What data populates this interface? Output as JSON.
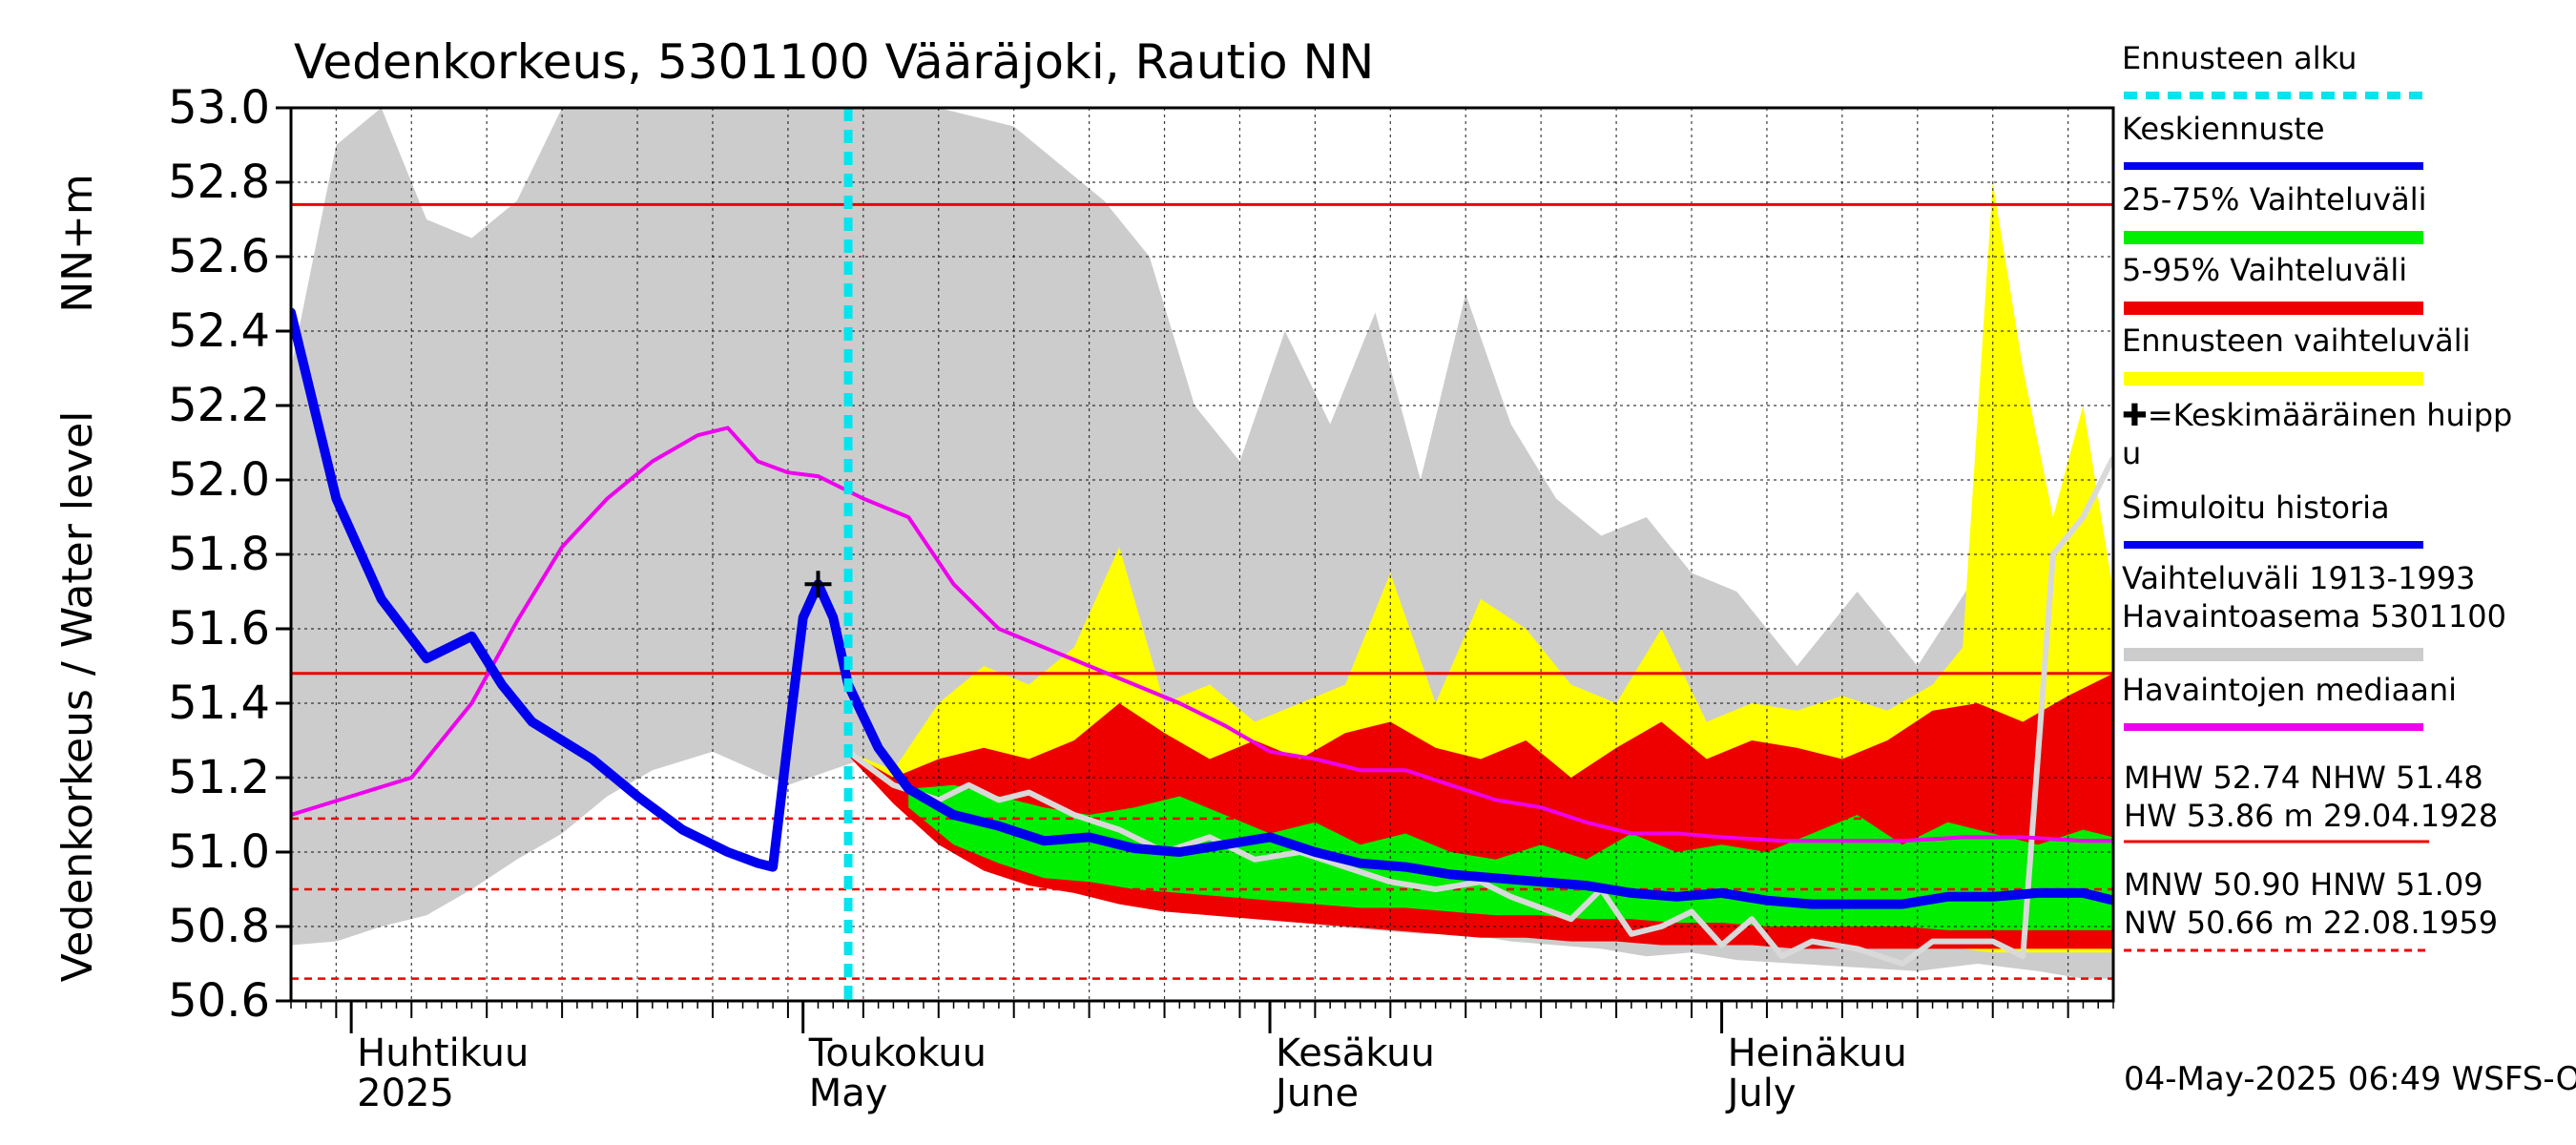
{
  "chart_data": {
    "type": "area",
    "title": "Vedenkorkeus, 5301100 Vääräjoki, Rautio NN",
    "ylabel": "Vedenkorkeus / Water level",
    "yunit": "NN+m",
    "ylim": [
      50.6,
      53.0
    ],
    "yticks": [
      "50.6",
      "50.8",
      "51.0",
      "51.2",
      "51.4",
      "51.6",
      "51.8",
      "52.0",
      "52.2",
      "52.4",
      "52.6",
      "52.8",
      "53.0"
    ],
    "xlim": [
      "2025-03-28",
      "2025-07-27"
    ],
    "month_labels": [
      {
        "date": "2025-04-01",
        "fi": "Huhtikuu",
        "en": "2025"
      },
      {
        "date": "2025-05-01",
        "fi": "Toukokuu",
        "en": "May"
      },
      {
        "date": "2025-06-01",
        "fi": "Kesäkuu",
        "en": "June"
      },
      {
        "date": "2025-07-01",
        "fi": "Heinäkuu",
        "en": "July"
      }
    ],
    "forecast_start": "2025-05-04",
    "mean_peak": {
      "date": "2025-05-02",
      "value": 51.72
    },
    "reference_lines": [
      {
        "name": "MHW",
        "value": 52.74,
        "style": "solid"
      },
      {
        "name": "NHW",
        "value": 51.48,
        "style": "solid"
      },
      {
        "name": "HNW",
        "value": 51.09,
        "style": "dashed"
      },
      {
        "name": "MNW",
        "value": 50.9,
        "style": "dashed"
      },
      {
        "name": "NW",
        "value": 50.66,
        "style": "dashed"
      }
    ],
    "legend_placement": "right",
    "legend": [
      {
        "label": "Ennusteen alku",
        "color": "#00e5ee",
        "style": "dotted"
      },
      {
        "label": "Keskiennuste",
        "color": "#0000ee",
        "style": "solid"
      },
      {
        "label": "25-75% Vaihteluväli",
        "color": "#00ee00",
        "style": "band"
      },
      {
        "label": "5-95% Vaihteluväli",
        "color": "#ee0000",
        "style": "band"
      },
      {
        "label": "Ennusteen vaihteluväli",
        "color": "#ffff00",
        "style": "band"
      },
      {
        "label": "✚=Keskimääräinen huipp",
        "label2": "u",
        "color": "#000000",
        "style": "none"
      },
      {
        "label": "Simuloitu historia",
        "color": "#0000ee",
        "style": "solid"
      },
      {
        "label": "Vaihteluväli 1913-1993",
        "label2": " Havaintoasema 5301100",
        "color": "#cccccc",
        "style": "band"
      },
      {
        "label": "Havaintojen mediaani",
        "color": "#ee00ee",
        "style": "solid"
      }
    ],
    "stats_text": [
      "MHW  52.74 NHW  51.48",
      "HW  53.86 m 29.04.1928",
      "MNW  50.90 HNW  51.09",
      "NW  50.66 m 22.08.1959"
    ],
    "footer": "04-May-2025 06:49 WSFS-O",
    "colors": {
      "history_band": "#cccccc",
      "forecast_range": "#ffff00",
      "band_5_95": "#ee0000",
      "band_25_75": "#00ee00",
      "mean_forecast": "#0000ee",
      "median": "#ee00ee",
      "light_forecast": "#d9d9d9",
      "ref_line": "#ee0000",
      "forecast_start": "#00e5ee"
    },
    "series": {
      "history_band": {
        "x": [
          "2025-03-28",
          "2025-03-31",
          "2025-04-03",
          "2025-04-06",
          "2025-04-09",
          "2025-04-12",
          "2025-04-15",
          "2025-04-18",
          "2025-04-21",
          "2025-04-25",
          "2025-04-30",
          "2025-05-05",
          "2025-05-10",
          "2025-05-15",
          "2025-05-18",
          "2025-05-21",
          "2025-05-24",
          "2025-05-27",
          "2025-05-30",
          "2025-06-02",
          "2025-06-05",
          "2025-06-08",
          "2025-06-11",
          "2025-06-14",
          "2025-06-17",
          "2025-06-20",
          "2025-06-23",
          "2025-06-26",
          "2025-06-29",
          "2025-07-02",
          "2025-07-06",
          "2025-07-10",
          "2025-07-14",
          "2025-07-18",
          "2025-07-22",
          "2025-07-25",
          "2025-07-27"
        ],
        "lower": [
          50.75,
          50.76,
          50.8,
          50.83,
          50.9,
          50.98,
          51.05,
          51.15,
          51.22,
          51.27,
          51.18,
          51.25,
          51.05,
          50.97,
          50.92,
          50.9,
          50.88,
          50.86,
          50.85,
          50.82,
          50.8,
          50.79,
          50.78,
          50.78,
          50.76,
          50.75,
          50.74,
          50.72,
          50.73,
          50.71,
          50.7,
          50.69,
          50.68,
          50.7,
          50.68,
          50.66,
          50.66
        ],
        "upper": [
          52.3,
          52.9,
          53.0,
          52.7,
          52.65,
          52.75,
          53.0,
          53.0,
          53.0,
          53.0,
          53.0,
          53.0,
          53.0,
          52.95,
          52.85,
          52.75,
          52.6,
          52.2,
          52.05,
          52.4,
          52.15,
          52.45,
          52.0,
          52.5,
          52.15,
          51.95,
          51.85,
          51.9,
          51.75,
          51.7,
          51.5,
          51.7,
          51.5,
          51.75,
          51.65,
          51.55,
          51.5
        ]
      },
      "forecast_range": {
        "x": [
          "2025-05-04",
          "2025-05-07",
          "2025-05-10",
          "2025-05-13",
          "2025-05-16",
          "2025-05-19",
          "2025-05-22",
          "2025-05-25",
          "2025-05-28",
          "2025-05-31",
          "2025-06-03",
          "2025-06-06",
          "2025-06-09",
          "2025-06-12",
          "2025-06-15",
          "2025-06-18",
          "2025-06-21",
          "2025-06-24",
          "2025-06-27",
          "2025-06-30",
          "2025-07-03",
          "2025-07-06",
          "2025-07-09",
          "2025-07-12",
          "2025-07-15",
          "2025-07-17",
          "2025-07-19",
          "2025-07-21",
          "2025-07-23",
          "2025-07-25",
          "2025-07-27"
        ],
        "lower": [
          51.27,
          51.15,
          51.05,
          50.98,
          50.93,
          50.9,
          50.88,
          50.86,
          50.85,
          50.84,
          50.83,
          50.82,
          50.81,
          50.8,
          50.79,
          50.78,
          50.77,
          50.77,
          50.76,
          50.76,
          50.75,
          50.75,
          50.75,
          50.74,
          50.74,
          50.74,
          50.73,
          50.73,
          50.73,
          50.73,
          50.73
        ],
        "upper": [
          51.27,
          51.22,
          51.4,
          51.5,
          51.45,
          51.55,
          51.82,
          51.4,
          51.45,
          51.35,
          51.4,
          51.45,
          51.75,
          51.4,
          51.68,
          51.6,
          51.45,
          51.4,
          51.6,
          51.35,
          51.4,
          51.38,
          51.42,
          51.38,
          51.45,
          51.55,
          52.8,
          52.3,
          51.9,
          52.2,
          51.7
        ]
      },
      "band_5_95": {
        "x": [
          "2025-05-04",
          "2025-05-07",
          "2025-05-10",
          "2025-05-13",
          "2025-05-16",
          "2025-05-19",
          "2025-05-22",
          "2025-05-25",
          "2025-05-28",
          "2025-05-31",
          "2025-06-03",
          "2025-06-06",
          "2025-06-09",
          "2025-06-12",
          "2025-06-15",
          "2025-06-18",
          "2025-06-21",
          "2025-06-24",
          "2025-06-27",
          "2025-06-30",
          "2025-07-03",
          "2025-07-06",
          "2025-07-09",
          "2025-07-12",
          "2025-07-15",
          "2025-07-18",
          "2025-07-21",
          "2025-07-24",
          "2025-07-27"
        ],
        "lower": [
          51.26,
          51.13,
          51.02,
          50.95,
          50.91,
          50.89,
          50.86,
          50.84,
          50.83,
          50.82,
          50.81,
          50.8,
          50.79,
          50.78,
          50.77,
          50.77,
          50.76,
          50.76,
          50.75,
          50.75,
          50.75,
          50.74,
          50.74,
          50.74,
          50.74,
          50.74,
          50.74,
          50.74,
          50.74
        ],
        "upper": [
          51.27,
          51.2,
          51.25,
          51.28,
          51.25,
          51.3,
          51.4,
          51.32,
          51.25,
          51.3,
          51.25,
          51.32,
          51.35,
          51.28,
          51.25,
          51.3,
          51.2,
          51.28,
          51.35,
          51.25,
          51.3,
          51.28,
          51.25,
          51.3,
          51.38,
          51.4,
          51.35,
          51.42,
          51.48
        ]
      },
      "band_25_75": {
        "x": [
          "2025-05-08",
          "2025-05-11",
          "2025-05-14",
          "2025-05-17",
          "2025-05-20",
          "2025-05-23",
          "2025-05-26",
          "2025-05-29",
          "2025-06-01",
          "2025-06-04",
          "2025-06-07",
          "2025-06-10",
          "2025-06-13",
          "2025-06-16",
          "2025-06-19",
          "2025-06-22",
          "2025-06-25",
          "2025-06-28",
          "2025-07-01",
          "2025-07-04",
          "2025-07-07",
          "2025-07-10",
          "2025-07-13",
          "2025-07-16",
          "2025-07-19",
          "2025-07-22",
          "2025-07-25",
          "2025-07-27"
        ],
        "lower": [
          51.12,
          51.02,
          50.97,
          50.93,
          50.92,
          50.9,
          50.89,
          50.88,
          50.87,
          50.86,
          50.85,
          50.85,
          50.84,
          50.83,
          50.83,
          50.82,
          50.82,
          50.81,
          50.81,
          50.8,
          50.8,
          50.8,
          50.8,
          50.79,
          50.79,
          50.79,
          50.79,
          50.79
        ],
        "upper": [
          51.17,
          51.18,
          51.15,
          51.12,
          51.1,
          51.12,
          51.15,
          51.1,
          51.05,
          51.08,
          51.02,
          51.05,
          51.0,
          50.98,
          51.02,
          50.98,
          51.05,
          51.0,
          51.02,
          51.0,
          51.05,
          51.1,
          51.02,
          51.08,
          51.05,
          51.02,
          51.06,
          51.04
        ]
      },
      "light_forecast": {
        "x": [
          "2025-05-04",
          "2025-05-07",
          "2025-05-10",
          "2025-05-12",
          "2025-05-14",
          "2025-05-16",
          "2025-05-19",
          "2025-05-22",
          "2025-05-25",
          "2025-05-28",
          "2025-05-31",
          "2025-06-03",
          "2025-06-06",
          "2025-06-09",
          "2025-06-12",
          "2025-06-15",
          "2025-06-17",
          "2025-06-19",
          "2025-06-21",
          "2025-06-23",
          "2025-06-25",
          "2025-06-27",
          "2025-06-29",
          "2025-07-01",
          "2025-07-03",
          "2025-07-05",
          "2025-07-07",
          "2025-07-10",
          "2025-07-13",
          "2025-07-15",
          "2025-07-17",
          "2025-07-19",
          "2025-07-21",
          "2025-07-23",
          "2025-07-25",
          "2025-07-27"
        ],
        "values": [
          51.27,
          51.18,
          51.14,
          51.18,
          51.14,
          51.16,
          51.1,
          51.06,
          51.0,
          51.04,
          50.98,
          51.0,
          50.96,
          50.92,
          50.9,
          50.92,
          50.88,
          50.85,
          50.82,
          50.9,
          50.78,
          50.8,
          50.84,
          50.75,
          50.82,
          50.72,
          50.76,
          50.74,
          50.7,
          50.76,
          50.76,
          50.76,
          50.72,
          51.8,
          51.9,
          52.06
        ]
      },
      "median": {
        "x": [
          "2025-03-28",
          "2025-04-01",
          "2025-04-05",
          "2025-04-09",
          "2025-04-12",
          "2025-04-15",
          "2025-04-18",
          "2025-04-21",
          "2025-04-24",
          "2025-04-26",
          "2025-04-28",
          "2025-04-30",
          "2025-05-02",
          "2025-05-05",
          "2025-05-08",
          "2025-05-11",
          "2025-05-14",
          "2025-05-17",
          "2025-05-20",
          "2025-05-23",
          "2025-05-26",
          "2025-05-29",
          "2025-06-01",
          "2025-06-04",
          "2025-06-07",
          "2025-06-10",
          "2025-06-13",
          "2025-06-16",
          "2025-06-19",
          "2025-06-22",
          "2025-06-25",
          "2025-06-28",
          "2025-07-01",
          "2025-07-05",
          "2025-07-09",
          "2025-07-13",
          "2025-07-17",
          "2025-07-21",
          "2025-07-25",
          "2025-07-27"
        ],
        "values": [
          51.1,
          51.15,
          51.2,
          51.4,
          51.62,
          51.82,
          51.95,
          52.05,
          52.12,
          52.14,
          52.05,
          52.02,
          52.01,
          51.95,
          51.9,
          51.72,
          51.6,
          51.55,
          51.5,
          51.45,
          51.4,
          51.34,
          51.27,
          51.25,
          51.22,
          51.22,
          51.18,
          51.14,
          51.12,
          51.08,
          51.05,
          51.05,
          51.04,
          51.03,
          51.03,
          51.03,
          51.04,
          51.04,
          51.03,
          51.03
        ]
      },
      "mean_forecast": {
        "x": [
          "2025-03-28",
          "2025-03-31",
          "2025-04-03",
          "2025-04-06",
          "2025-04-09",
          "2025-04-11",
          "2025-04-13",
          "2025-04-15",
          "2025-04-17",
          "2025-04-20",
          "2025-04-23",
          "2025-04-26",
          "2025-04-28",
          "2025-04-29",
          "2025-04-30",
          "2025-05-01",
          "2025-05-02",
          "2025-05-03",
          "2025-05-04",
          "2025-05-06",
          "2025-05-08",
          "2025-05-11",
          "2025-05-14",
          "2025-05-17",
          "2025-05-20",
          "2025-05-23",
          "2025-05-26",
          "2025-05-29",
          "2025-06-01",
          "2025-06-04",
          "2025-06-07",
          "2025-06-10",
          "2025-06-13",
          "2025-06-16",
          "2025-06-19",
          "2025-06-22",
          "2025-06-25",
          "2025-06-28",
          "2025-07-01",
          "2025-07-04",
          "2025-07-07",
          "2025-07-10",
          "2025-07-13",
          "2025-07-16",
          "2025-07-19",
          "2025-07-22",
          "2025-07-25",
          "2025-07-27"
        ],
        "values": [
          52.45,
          51.95,
          51.68,
          51.52,
          51.58,
          51.45,
          51.35,
          51.3,
          51.25,
          51.15,
          51.06,
          51.0,
          50.97,
          50.96,
          51.3,
          51.63,
          51.72,
          51.63,
          51.45,
          51.28,
          51.17,
          51.1,
          51.07,
          51.03,
          51.04,
          51.01,
          51.0,
          51.02,
          51.04,
          51.0,
          50.97,
          50.96,
          50.94,
          50.93,
          50.92,
          50.91,
          50.89,
          50.88,
          50.89,
          50.87,
          50.86,
          50.86,
          50.86,
          50.88,
          50.88,
          50.89,
          50.89,
          50.87
        ]
      }
    }
  }
}
